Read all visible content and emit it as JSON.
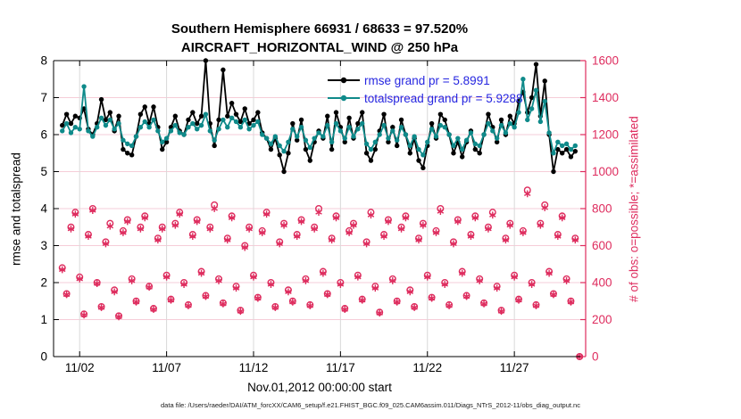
{
  "title": {
    "line1": "Southern Hemisphere 66931 / 68633 = 97.520%",
    "line2": "AIRCRAFT_HORIZONTAL_WIND @ 250 hPa"
  },
  "legend": [
    {
      "label": "rmse grand pr = 5.8991"
    },
    {
      "label": "totalspread grand pr = 5.9288"
    }
  ],
  "axes": {
    "ylabel_left": "rmse and totalspread",
    "ylabel_right": "# of obs: o=possible; *=assimilated",
    "xlabel": "Nov.01,2012 00:00:00 start"
  },
  "caption": "data file: /Users/raeder/DAI/ATM_forcXX/CAM6_setup/f.e21.FHIST_BGC.f09_025.CAM6assim.011/Diags_NTrS_2012-11/obs_diag_output.nc",
  "colors": {
    "rmse": "#000000",
    "totalspread": "#0f8a8a",
    "obs": "#de2c5e",
    "legend_text": "#2626e0",
    "grid_horizontal": "#f6cdd8",
    "grid_vertical": "#d9d9d9",
    "axis_black": "#000000"
  },
  "chart_data": {
    "type": "line",
    "note": "x in days since Nov.01,2012 00:00, one bin per 6 h; rmse/totalspread on left axis, possible/assimilated obs counts on right axis",
    "x_start_day": 0,
    "x_step_days": 0.25,
    "xlim": [
      -0.5,
      30.1
    ],
    "ylim_left": [
      0,
      8
    ],
    "ylim_right": [
      0,
      1600
    ],
    "yticks_left": [
      0,
      1,
      2,
      3,
      4,
      5,
      6,
      7,
      8
    ],
    "yticks_right": [
      0,
      200,
      400,
      600,
      800,
      1000,
      1200,
      1400,
      1600
    ],
    "xticks": {
      "days": [
        1,
        6,
        11,
        16,
        21,
        26
      ],
      "labels": [
        "11/02",
        "11/07",
        "11/12",
        "11/17",
        "11/22",
        "11/27"
      ]
    },
    "grid": true,
    "legend_position": "top-right-inside",
    "series": [
      {
        "name": "rmse",
        "color": "#000000",
        "values": [
          6.25,
          6.55,
          6.3,
          6.5,
          6.45,
          6.7,
          6.15,
          6.0,
          6.3,
          6.95,
          6.4,
          6.6,
          6.1,
          6.5,
          5.6,
          5.5,
          5.45,
          5.95,
          6.55,
          6.75,
          6.3,
          6.75,
          6.2,
          5.6,
          5.8,
          6.2,
          6.5,
          6.1,
          6.0,
          6.4,
          6.6,
          6.3,
          6.5,
          8.0,
          6.3,
          5.7,
          6.4,
          7.75,
          6.5,
          6.85,
          6.55,
          6.35,
          6.7,
          6.3,
          6.4,
          6.6,
          6.05,
          5.9,
          5.6,
          5.9,
          5.45,
          5.0,
          5.5,
          6.3,
          5.85,
          6.4,
          5.6,
          5.3,
          5.8,
          6.1,
          5.9,
          6.5,
          5.6,
          6.6,
          6.2,
          5.8,
          6.45,
          5.9,
          6.3,
          6.6,
          5.5,
          5.3,
          5.6,
          6.1,
          6.55,
          5.8,
          6.2,
          5.7,
          6.4,
          6.0,
          5.5,
          5.9,
          5.3,
          5.1,
          5.7,
          6.3,
          5.9,
          6.55,
          6.4,
          6.0,
          5.5,
          5.8,
          5.4,
          5.8,
          6.1,
          5.6,
          5.5,
          6.0,
          6.55,
          6.2,
          5.8,
          6.4,
          6.0,
          6.5,
          6.3,
          6.9,
          7.15,
          6.6,
          7.0,
          7.9,
          6.5,
          7.45,
          6.0,
          5.0,
          5.6,
          5.5,
          5.6,
          5.4,
          5.55
        ]
      },
      {
        "name": "totalspread",
        "color": "#0f8a8a",
        "values": [
          6.1,
          6.3,
          6.05,
          6.2,
          6.15,
          7.3,
          6.1,
          5.95,
          6.2,
          6.45,
          6.25,
          6.4,
          6.15,
          6.3,
          5.85,
          5.75,
          5.7,
          5.95,
          6.2,
          6.35,
          6.2,
          6.4,
          6.1,
          5.8,
          5.9,
          6.1,
          6.25,
          6.05,
          6.0,
          6.2,
          6.3,
          6.15,
          6.25,
          6.55,
          6.1,
          5.85,
          6.15,
          6.4,
          6.2,
          6.45,
          6.35,
          6.2,
          6.4,
          6.15,
          6.25,
          6.35,
          6.0,
          5.9,
          5.75,
          5.95,
          5.7,
          5.55,
          5.8,
          6.15,
          5.95,
          6.2,
          5.85,
          5.65,
          5.9,
          6.05,
          5.95,
          6.25,
          5.8,
          6.3,
          6.1,
          5.9,
          6.2,
          5.95,
          6.15,
          6.3,
          5.75,
          5.6,
          5.8,
          6.0,
          6.25,
          5.9,
          6.1,
          5.85,
          6.2,
          6.0,
          5.7,
          5.95,
          5.6,
          5.45,
          5.8,
          6.15,
          5.95,
          6.25,
          6.2,
          6.0,
          5.7,
          5.9,
          5.6,
          5.85,
          6.05,
          5.75,
          5.7,
          6.0,
          6.3,
          6.1,
          5.9,
          6.25,
          6.05,
          6.3,
          6.2,
          6.6,
          7.5,
          6.4,
          6.7,
          7.2,
          6.35,
          6.9,
          6.05,
          5.5,
          5.8,
          5.7,
          5.75,
          5.6,
          5.7
        ]
      }
    ],
    "obs": {
      "color": "#de2c5e",
      "possible": [
        480,
        340,
        700,
        780,
        430,
        230,
        660,
        800,
        400,
        270,
        620,
        720,
        360,
        220,
        680,
        740,
        420,
        300,
        700,
        760,
        380,
        260,
        640,
        700,
        440,
        310,
        720,
        780,
        400,
        280,
        660,
        740,
        460,
        330,
        700,
        820,
        420,
        290,
        640,
        760,
        380,
        250,
        600,
        700,
        440,
        320,
        680,
        780,
        400,
        270,
        620,
        720,
        360,
        300,
        660,
        740,
        420,
        280,
        700,
        800,
        460,
        340,
        640,
        760,
        400,
        260,
        680,
        720,
        440,
        310,
        620,
        780,
        380,
        240,
        660,
        740,
        420,
        300,
        700,
        760,
        360,
        270,
        640,
        720,
        440,
        320,
        680,
        800,
        400,
        280,
        620,
        740,
        460,
        330,
        660,
        760,
        420,
        290,
        700,
        780,
        380,
        250,
        640,
        720,
        440,
        310,
        680,
        900,
        400,
        280,
        720,
        820,
        460,
        340,
        660,
        760,
        420,
        300,
        640,
        0
      ],
      "assimilated": [
        470,
        335,
        690,
        770,
        420,
        225,
        650,
        790,
        395,
        265,
        610,
        705,
        350,
        215,
        670,
        730,
        410,
        295,
        690,
        750,
        375,
        255,
        630,
        690,
        430,
        305,
        710,
        770,
        390,
        275,
        650,
        730,
        450,
        325,
        690,
        800,
        410,
        285,
        630,
        750,
        370,
        245,
        590,
        690,
        430,
        315,
        670,
        770,
        390,
        265,
        610,
        710,
        350,
        295,
        650,
        730,
        410,
        275,
        690,
        780,
        450,
        335,
        630,
        750,
        390,
        255,
        670,
        710,
        430,
        305,
        610,
        765,
        370,
        235,
        650,
        730,
        410,
        295,
        690,
        750,
        350,
        265,
        630,
        710,
        430,
        315,
        670,
        785,
        390,
        275,
        610,
        730,
        450,
        325,
        650,
        750,
        410,
        285,
        690,
        765,
        370,
        245,
        630,
        710,
        430,
        305,
        670,
        880,
        390,
        275,
        710,
        805,
        450,
        335,
        650,
        750,
        410,
        295,
        630,
        0
      ]
    }
  }
}
